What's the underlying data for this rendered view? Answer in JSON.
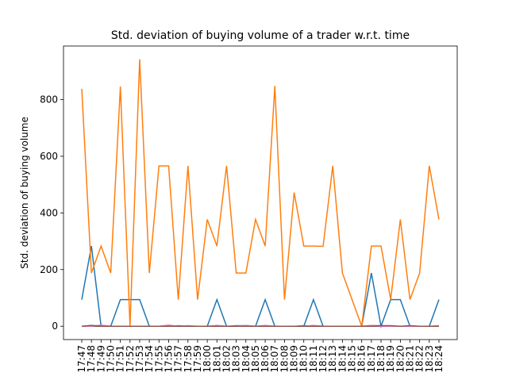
{
  "chart_data": {
    "type": "line",
    "title": "Std. deviation of buying volume of a trader w.r.t. time",
    "y_label": "Std. deviation of buying volume",
    "categories": [
      "17:47",
      "17:48",
      "17:49",
      "17:50",
      "17:51",
      "17:52",
      "17:53",
      "17:54",
      "17:55",
      "17:56",
      "17:57",
      "17:58",
      "17:59",
      "18:00",
      "18:01",
      "18:02",
      "18:03",
      "18:04",
      "18:05",
      "18:06",
      "18:07",
      "18:08",
      "18:09",
      "18:10",
      "18:11",
      "18:12",
      "18:13",
      "18:14",
      "18:15",
      "18:16",
      "18:17",
      "18:18",
      "18:19",
      "18:20",
      "18:21",
      "18:22",
      "18:23",
      "18:24"
    ],
    "series": [
      {
        "color": "#1f77b4",
        "values": [
          94,
          283,
          0,
          0,
          94,
          94,
          94,
          0,
          0,
          0,
          0,
          0,
          0,
          0,
          94,
          0,
          0,
          0,
          0,
          94,
          0,
          0,
          0,
          0,
          94,
          0,
          0,
          0,
          0,
          0,
          188,
          0,
          94,
          94,
          0,
          0,
          0,
          94
        ]
      },
      {
        "color": "#ff7f0e",
        "values": [
          838,
          188,
          283,
          188,
          846,
          0,
          942,
          188,
          566,
          566,
          94,
          566,
          94,
          377,
          283,
          566,
          188,
          188,
          377,
          283,
          848,
          94,
          472,
          283,
          283,
          282,
          566,
          188,
          94,
          0,
          283,
          283,
          94,
          377,
          94,
          188,
          566,
          377
        ]
      },
      {
        "color": "#2ca02c",
        "values": [
          0,
          0,
          0,
          0,
          0,
          0,
          0,
          0,
          0,
          0,
          0,
          0,
          0,
          0,
          0,
          0,
          0,
          0,
          0,
          0,
          0,
          0,
          0,
          0,
          0,
          0,
          0,
          0,
          0,
          0,
          0,
          0,
          0,
          0,
          0,
          0,
          0,
          0
        ]
      },
      {
        "color": "#d62728",
        "values": [
          0,
          2,
          0,
          0,
          0,
          0,
          0,
          0,
          0,
          0,
          0,
          0,
          0,
          0,
          0,
          0,
          0,
          0,
          0,
          0,
          0,
          0,
          0,
          0,
          2,
          0,
          0,
          0,
          0,
          0,
          2,
          2,
          0,
          0,
          0,
          0,
          0,
          0
        ]
      },
      {
        "color": "#9467bd",
        "values": [
          0,
          0,
          3,
          0,
          0,
          0,
          0,
          0,
          0,
          0,
          2,
          0,
          0,
          0,
          0,
          0,
          2,
          2,
          0,
          0,
          0,
          0,
          0,
          2,
          0,
          0,
          0,
          0,
          0,
          0,
          0,
          0,
          0,
          0,
          0,
          0,
          0,
          0
        ]
      },
      {
        "color": "#e377c2",
        "values": [
          0,
          0,
          4,
          0,
          0,
          0,
          0,
          0,
          0,
          4,
          0,
          2,
          0,
          0,
          3,
          0,
          0,
          3,
          0,
          3,
          0,
          0,
          0,
          0,
          3,
          0,
          0,
          0,
          0,
          0,
          3,
          0,
          0,
          0,
          0,
          0,
          0,
          2
        ]
      },
      {
        "color": "#8c564b",
        "values": [
          0,
          3,
          0,
          0,
          0,
          0,
          0,
          0,
          0,
          0,
          0,
          0,
          0,
          0,
          0,
          0,
          0,
          0,
          0,
          0,
          0,
          0,
          0,
          0,
          0,
          0,
          0,
          0,
          0,
          0,
          0,
          2,
          2,
          0,
          2,
          0,
          0,
          0
        ]
      }
    ],
    "ylim": [
      -47,
      989
    ],
    "yticks": [
      0,
      200,
      400,
      600,
      800
    ]
  }
}
